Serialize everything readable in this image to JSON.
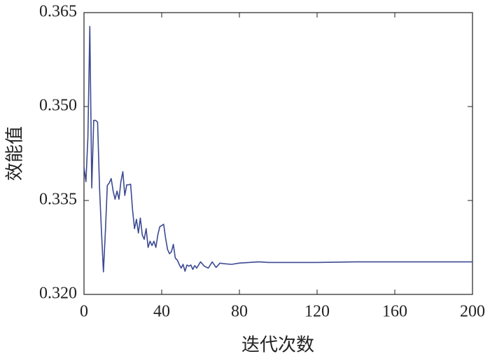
{
  "chart_data": {
    "type": "line",
    "x_label": "迭代次数",
    "y_label": "效能值",
    "x": [
      0,
      1,
      2,
      3,
      4,
      5,
      6,
      7,
      8,
      9,
      10,
      11,
      12,
      13,
      14,
      15,
      16,
      17,
      18,
      19,
      20,
      21,
      22,
      23,
      24,
      25,
      26,
      27,
      28,
      29,
      30,
      31,
      32,
      33,
      34,
      35,
      36,
      37,
      38,
      39,
      40,
      41,
      42,
      43,
      44,
      45,
      46,
      47,
      48,
      49,
      50,
      51,
      52,
      53,
      54,
      55,
      56,
      57,
      58,
      60,
      62,
      64,
      66,
      68,
      70,
      72,
      76,
      80,
      85,
      90,
      95,
      100,
      110,
      120,
      140,
      200
    ],
    "series": [
      {
        "name": "效能值",
        "color": "#3c4a92",
        "values": [
          0.3403,
          0.338,
          0.345,
          0.3628,
          0.337,
          0.3478,
          0.3478,
          0.3475,
          0.337,
          0.33,
          0.3236,
          0.33,
          0.3374,
          0.3378,
          0.3385,
          0.3365,
          0.3352,
          0.3365,
          0.3352,
          0.338,
          0.3396,
          0.3358,
          0.3375,
          0.3375,
          0.3376,
          0.3335,
          0.3305,
          0.332,
          0.3298,
          0.3322,
          0.3295,
          0.3288,
          0.3305,
          0.3275,
          0.3285,
          0.3278,
          0.3285,
          0.3275,
          0.3295,
          0.3308,
          0.331,
          0.3312,
          0.329,
          0.3272,
          0.3265,
          0.3268,
          0.328,
          0.3258,
          0.3255,
          0.3248,
          0.3242,
          0.3248,
          0.3237,
          0.3247,
          0.3245,
          0.3247,
          0.324,
          0.3246,
          0.3242,
          0.3252,
          0.3245,
          0.3242,
          0.3252,
          0.3243,
          0.325,
          0.3249,
          0.3248,
          0.325,
          0.3251,
          0.3252,
          0.3251,
          0.3251,
          0.3251,
          0.3251,
          0.3252,
          0.3252
        ]
      }
    ],
    "xlim": [
      0,
      200
    ],
    "xticks": [
      0,
      40,
      80,
      120,
      160,
      200
    ],
    "ylim": [
      0.32,
      0.365
    ],
    "yticks": [
      {
        "value": 0.32,
        "label": "0.320"
      },
      {
        "value": 0.335,
        "label": "0.335"
      },
      {
        "value": 0.35,
        "label": "0.350"
      },
      {
        "value": 0.365,
        "label": "0.365"
      }
    ]
  }
}
